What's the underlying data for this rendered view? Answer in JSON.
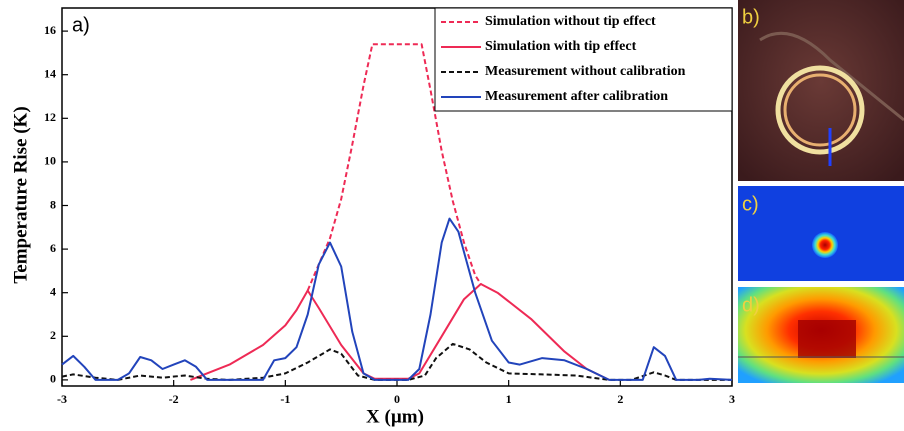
{
  "chart_data": {
    "type": "line",
    "annotation": "a)",
    "xlabel": "X (µm)",
    "ylabel": "Temperature Rise (K)",
    "xlim": [
      -3,
      3
    ],
    "ylim": [
      -0.28,
      17.06
    ],
    "xticks": [
      -3,
      -2,
      -1,
      0,
      1,
      2,
      3
    ],
    "yticks": [
      0,
      2,
      4,
      6,
      8,
      10,
      12,
      14,
      16
    ],
    "legend": "upper right",
    "series": [
      {
        "name": "Simulation without tip effect",
        "color": "#ee2a55",
        "style": "dashed",
        "x": [
          -0.8,
          -0.7,
          -0.6,
          -0.5,
          -0.4,
          -0.3,
          -0.22,
          -0.1,
          0,
          0.1,
          0.22,
          0.3,
          0.4,
          0.5,
          0.6,
          0.7,
          0.75
        ],
        "values": [
          4.1,
          5.3,
          6.5,
          8.3,
          10.8,
          13.5,
          15.4,
          15.4,
          15.4,
          15.4,
          15.4,
          13.3,
          10.5,
          8.2,
          6.3,
          4.8,
          4.4
        ]
      },
      {
        "name": "Simulation with tip effect",
        "color": "#ee2a55",
        "style": "solid",
        "x": [
          -1.85,
          -1.5,
          -1.2,
          -1.0,
          -0.9,
          -0.8,
          -0.7,
          -0.5,
          -0.3,
          -0.2,
          0,
          0.1,
          0.2,
          0.4,
          0.6,
          0.75,
          0.9,
          1.2,
          1.5,
          1.7,
          1.9
        ],
        "values": [
          0,
          0.7,
          1.6,
          2.5,
          3.2,
          4.1,
          3.3,
          1.6,
          0.3,
          0.05,
          0.05,
          0.05,
          0.3,
          2.0,
          3.7,
          4.4,
          4.0,
          2.8,
          1.3,
          0.5,
          0
        ]
      },
      {
        "name": "Measurement without calibration",
        "color": "#111111",
        "style": "dashed",
        "x": [
          -3,
          -2.9,
          -2.7,
          -2.5,
          -2.3,
          -2.1,
          -1.9,
          -1.7,
          -1.5,
          -1.2,
          -1.0,
          -0.8,
          -0.6,
          -0.5,
          -0.35,
          -0.2,
          0.1,
          0.25,
          0.35,
          0.5,
          0.65,
          0.8,
          1.0,
          1.3,
          1.6,
          1.9,
          2.1,
          2.3,
          2.4,
          2.5,
          3
        ],
        "values": [
          0.15,
          0.25,
          0.1,
          0,
          0.2,
          0.1,
          0.2,
          0.05,
          0,
          0.1,
          0.3,
          0.8,
          1.4,
          1.2,
          0.2,
          0,
          0,
          0.2,
          1.0,
          1.65,
          1.4,
          0.8,
          0.3,
          0.25,
          0.2,
          0,
          0,
          0.35,
          0.2,
          0,
          0
        ]
      },
      {
        "name": "Measurement after calibration",
        "color": "#2244bb",
        "style": "solid",
        "x": [
          -3,
          -2.9,
          -2.8,
          -2.7,
          -2.5,
          -2.4,
          -2.3,
          -2.2,
          -2.1,
          -2.0,
          -1.9,
          -1.8,
          -1.7,
          -1.2,
          -1.1,
          -1.0,
          -0.9,
          -0.8,
          -0.7,
          -0.6,
          -0.5,
          -0.4,
          -0.3,
          -0.2,
          0.1,
          0.2,
          0.3,
          0.4,
          0.47,
          0.55,
          0.7,
          0.85,
          1.0,
          1.1,
          1.3,
          1.5,
          1.7,
          1.9,
          2.2,
          2.3,
          2.4,
          2.5,
          2.7,
          2.8,
          3
        ],
        "values": [
          0.7,
          1.1,
          0.6,
          0,
          0,
          0.3,
          1.05,
          0.9,
          0.5,
          0.7,
          0.9,
          0.6,
          0,
          0,
          0.9,
          1.0,
          1.5,
          3.0,
          5.3,
          6.3,
          5.2,
          2.2,
          0.3,
          0,
          0,
          0.5,
          3.0,
          6.3,
          7.4,
          6.8,
          4.0,
          1.8,
          0.8,
          0.7,
          1.0,
          0.9,
          0.5,
          0,
          0,
          1.5,
          1.1,
          0,
          0,
          0.05,
          0
        ]
      }
    ]
  },
  "insets": [
    {
      "label": "b)"
    },
    {
      "label": "c)"
    },
    {
      "label": "d)"
    }
  ]
}
